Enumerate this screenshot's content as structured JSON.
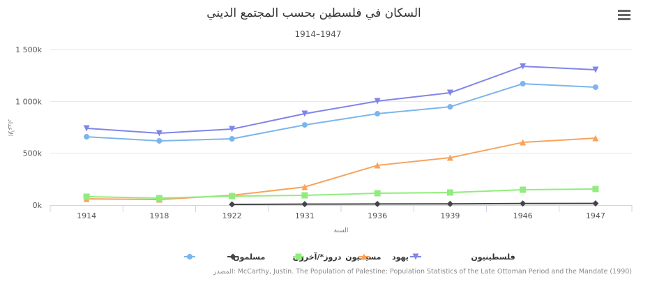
{
  "chart_data": {
    "type": "line",
    "title": "السكان في فلسطين بحسب المجتمع الديني",
    "subtitle": "1914–1947",
    "xlabel": "السنة",
    "ylabel": "الأعداد",
    "categories": [
      "1914",
      "1918",
      "1922",
      "1931",
      "1936",
      "1939",
      "1946",
      "1947"
    ],
    "ylim": [
      0,
      1500000
    ],
    "yticks": [
      0,
      500000,
      1000000,
      1500000
    ],
    "ytick_labels": [
      "0k",
      "500k",
      "1 000k",
      "1 500k"
    ],
    "grid": true,
    "legend_position": "bottom",
    "series": [
      {
        "name": "فلسطينيون",
        "color": "#8085e9",
        "marker": "triangle-down",
        "values": [
          740000,
          693000,
          733000,
          881000,
          1002000,
          1083000,
          1338000,
          1305000
        ]
      },
      {
        "name": "يهود",
        "color": "#f7a35c",
        "marker": "triangle",
        "values": [
          60000,
          54000,
          94000,
          175000,
          383000,
          457000,
          605000,
          646000
        ]
      },
      {
        "name": "مسيحيون",
        "color": "#90ed7d",
        "marker": "square",
        "values": [
          81000,
          67000,
          87000,
          94000,
          114000,
          121000,
          148000,
          155000
        ]
      },
      {
        "name": "دروز*/آخرون",
        "color": "#434348",
        "marker": "diamond",
        "values": [
          null,
          null,
          7000,
          9000,
          11000,
          12000,
          15000,
          16000
        ]
      },
      {
        "name": "مسلمون",
        "color": "#7cb5ec",
        "marker": "circle",
        "values": [
          659000,
          619000,
          639000,
          773000,
          881000,
          948000,
          1170000,
          1137000
        ]
      }
    ],
    "legend_order": [
      4,
      3,
      2,
      1,
      0
    ],
    "credit": "المصدر: McCarthy, Justin. The Population of Palestine: Population Statistics of the Late Ottoman Period and the Mandate (1990)"
  },
  "menu_icon": "hamburger-menu-icon"
}
